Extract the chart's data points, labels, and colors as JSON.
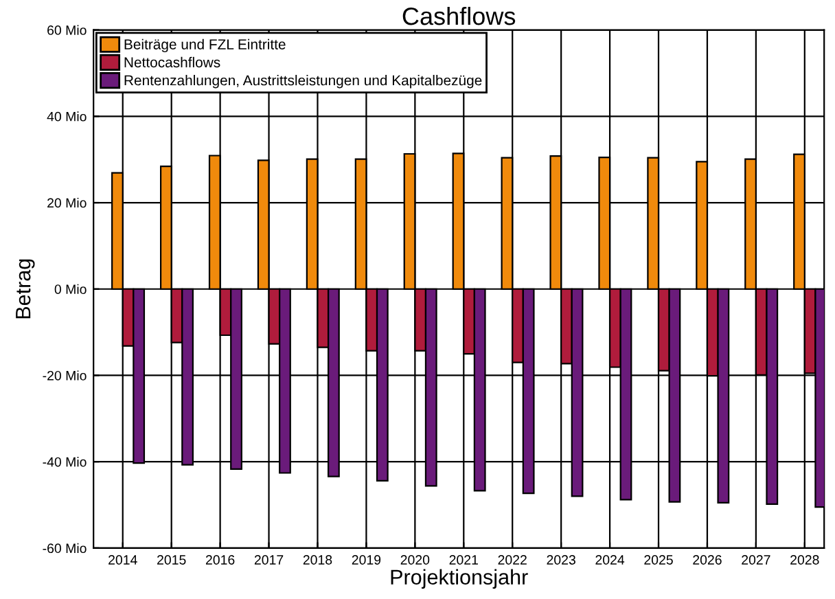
{
  "chart_data": {
    "type": "bar",
    "title": "Cashflows",
    "xlabel": "Projektionsjahr",
    "ylabel": "Betrag",
    "categories": [
      "2014",
      "2015",
      "2016",
      "2017",
      "2018",
      "2019",
      "2020",
      "2021",
      "2022",
      "2023",
      "2024",
      "2025",
      "2026",
      "2027",
      "2028"
    ],
    "series": [
      {
        "name": "Beiträge und FZL Eintritte",
        "color": "#f08a0c",
        "values": [
          26.9,
          28.4,
          30.9,
          29.8,
          30.1,
          30.1,
          31.3,
          31.4,
          30.4,
          30.8,
          30.5,
          30.4,
          29.5,
          30.1,
          31.2
        ]
      },
      {
        "name": "Nettocashflows",
        "color": "#b01c3c",
        "values": [
          -13.2,
          -12.4,
          -10.7,
          -12.7,
          -13.5,
          -14.3,
          -14.3,
          -15.0,
          -17.0,
          -17.3,
          -18.1,
          -18.9,
          -20.1,
          -19.9,
          -19.5
        ]
      },
      {
        "name": "Rentenzahlungen, Austrittsleistungen und Kapitalbezüge",
        "color": "#6a1b7a",
        "values": [
          -40.3,
          -40.7,
          -41.7,
          -42.6,
          -43.4,
          -44.4,
          -45.6,
          -46.7,
          -47.3,
          -48.0,
          -48.8,
          -49.3,
          -49.5,
          -49.8,
          -50.5
        ]
      }
    ],
    "ylim": [
      -60,
      60
    ],
    "yticks": [
      {
        "value": -60,
        "label": "-60 Mio"
      },
      {
        "value": -40,
        "label": "-40 Mio"
      },
      {
        "value": -20,
        "label": "-20 Mio"
      },
      {
        "value": 0,
        "label": "0 Mio"
      },
      {
        "value": 20,
        "label": "20 Mio"
      },
      {
        "value": 40,
        "label": "40 Mio"
      },
      {
        "value": 60,
        "label": "60 Mio"
      }
    ],
    "grid": true,
    "legend": "top left"
  }
}
